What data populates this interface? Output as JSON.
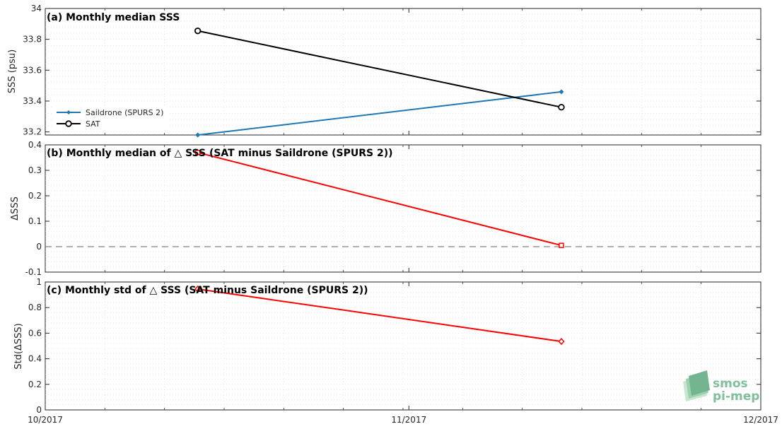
{
  "chart_data": [
    {
      "type": "line",
      "title": "(a) Monthly median SSS",
      "ylabel": "SSS (psu)",
      "ylim": [
        33.18,
        34.0
      ],
      "yticks": [
        "33.2",
        "33.4",
        "33.6",
        "33.8",
        "34"
      ],
      "ytick_values": [
        33.2,
        33.4,
        33.6,
        33.8,
        34.0
      ],
      "grid": true,
      "legend_placement": "left",
      "series": [
        {
          "name": "Saildrone (SPURS 2)",
          "color": "#1f77b4",
          "marker": "diamond-filled",
          "x": [
            "2017-10-14",
            "2017-11-14"
          ],
          "values": [
            33.18,
            33.46
          ]
        },
        {
          "name": "SAT",
          "color": "#000000",
          "marker": "circle-open",
          "x": [
            "2017-10-14",
            "2017-11-14"
          ],
          "values": [
            33.855,
            33.36
          ]
        }
      ]
    },
    {
      "type": "line",
      "title": "(b) Monthly median of △ SSS (SAT minus Saildrone (SPURS 2))",
      "ylabel": "ΔSSS",
      "ylim": [
        -0.1,
        0.4
      ],
      "yticks": [
        "-0.1",
        "0",
        "0.1",
        "0.2",
        "0.3",
        "0.4"
      ],
      "ytick_values": [
        -0.1,
        0,
        0.1,
        0.2,
        0.3,
        0.4
      ],
      "grid": true,
      "reference_line": 0,
      "series": [
        {
          "color": "#ff0000",
          "marker": "square-open",
          "x": [
            "2017-10-14",
            "2017-11-14"
          ],
          "values": [
            0.37,
            0.005
          ]
        }
      ]
    },
    {
      "type": "line",
      "title": "(c) Monthly std of △ SSS (SAT minus Saildrone (SPURS 2))",
      "ylabel": "Std(ΔSSS)",
      "ylim": [
        0,
        1
      ],
      "yticks": [
        "0",
        "0.2",
        "0.4",
        "0.6",
        "0.8",
        "1"
      ],
      "ytick_values": [
        0,
        0.2,
        0.4,
        0.6,
        0.8,
        1.0
      ],
      "grid": true,
      "series": [
        {
          "color": "#ff0000",
          "marker": "diamond-open",
          "x": [
            "2017-10-14",
            "2017-11-14"
          ],
          "values": [
            0.945,
            0.535
          ]
        }
      ]
    }
  ],
  "xaxis": {
    "type": "date",
    "range": [
      "2017-10-01",
      "2017-12-01"
    ],
    "ticks": [
      "2017-10-01",
      "2017-11-01",
      "2017-12-01"
    ],
    "tick_labels": [
      "10/2017",
      "11/2017",
      "12/2017"
    ]
  },
  "logo": {
    "line1": "smos",
    "line2": "pi-mep"
  }
}
